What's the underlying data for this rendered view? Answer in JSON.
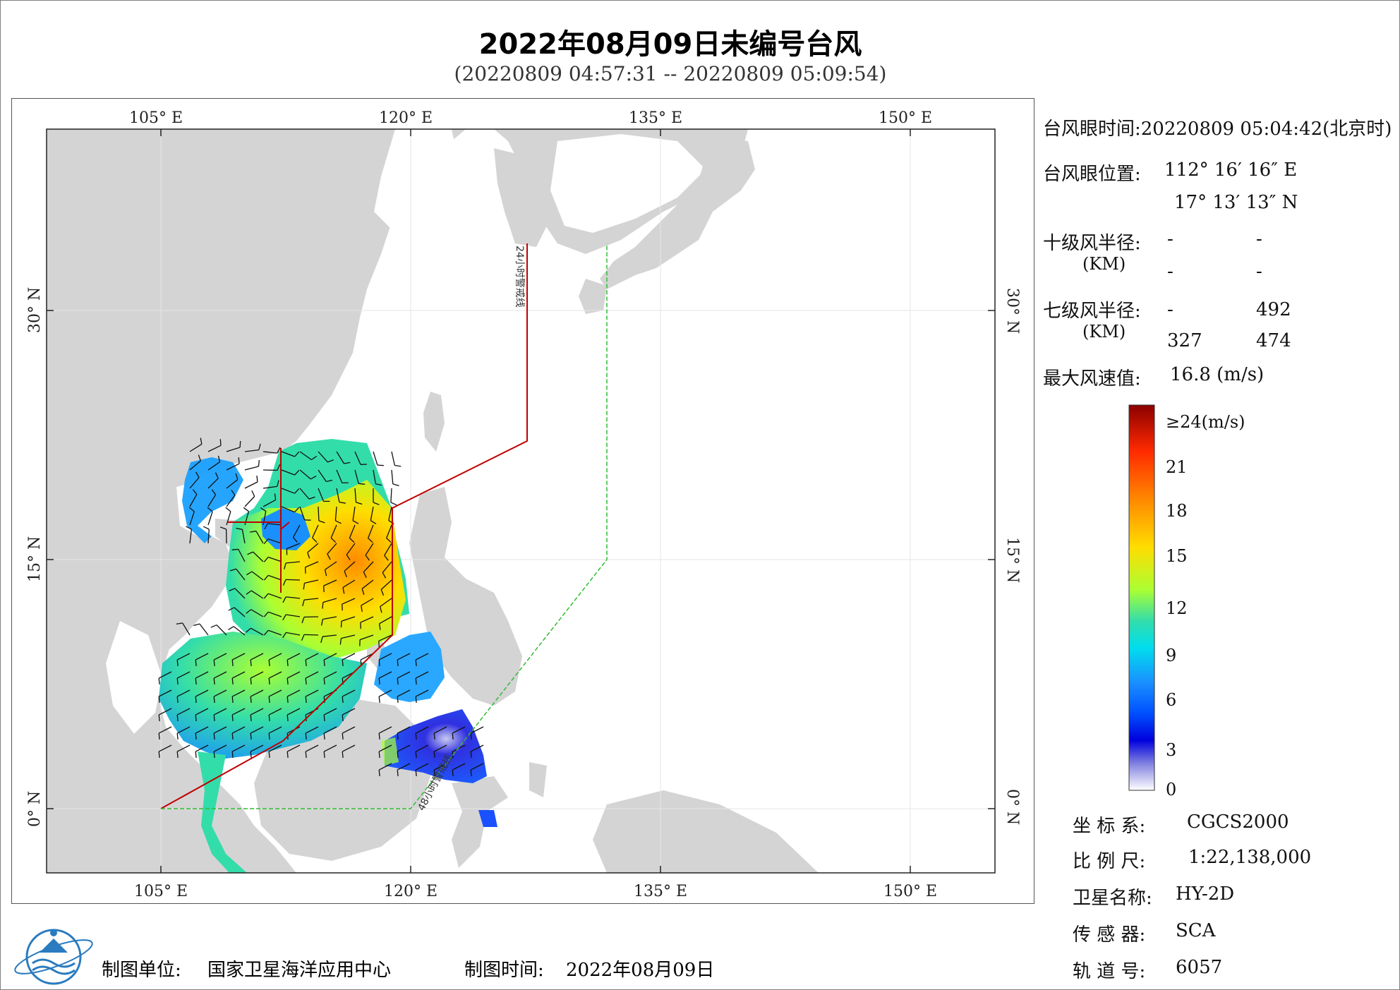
{
  "header": {
    "title": "2022年08月09日未编号台风",
    "time_range": "(20220809 04:57:31 -- 20220809 05:09:54)"
  },
  "map": {
    "top_lon_labels": [
      "105° E",
      "120° E",
      "135° E",
      "150° E"
    ],
    "bottom_lon_labels": [
      "105° E",
      "120° E",
      "135° E",
      "150° E"
    ],
    "left_lat_labels": [
      "30° N",
      "15° N",
      "0° N"
    ],
    "right_lat_labels": [
      "30° N",
      "15° N",
      "0° N"
    ],
    "line_24h_label": "24小时警戒线",
    "line_48h_label": "48小时警戒线",
    "colors": {
      "land": "#d4d4d4",
      "ocean": "#ffffff",
      "grid": "#e8e8e8",
      "warning_24h": "#c00000",
      "warning_48h": "#33bb33"
    }
  },
  "info_panel": {
    "eye_time_label": "台风眼时间:",
    "eye_time_value": "20220809 05:04:42(北京时)",
    "eye_pos_label": "台风眼位置:",
    "eye_lon": "112° 16′ 16″ E",
    "eye_lat": "17° 13′ 13″ N",
    "r10_label": "十级风半径:",
    "r10_unit": "(KM)",
    "r10_values": [
      "-",
      "-",
      "-",
      "-"
    ],
    "r7_label": "七级风半径:",
    "r7_unit": "(KM)",
    "r7_values": [
      "-",
      "492",
      "327",
      "474"
    ],
    "max_wind_label": "最大风速值:",
    "max_wind_value": "16.8  (m/s)"
  },
  "colorbar": {
    "top_label": "≥24(m/s)",
    "ticks": [
      "21",
      "18",
      "15",
      "12",
      "9",
      "6",
      "3",
      "0"
    ],
    "stops": [
      "#8b0000",
      "#ff2a00",
      "#ff8c00",
      "#ffdd00",
      "#aaff33",
      "#33ddaa",
      "#00ddee",
      "#1a90ff",
      "#0050ff",
      "#0000dd",
      "#8080e0",
      "#ffffff"
    ]
  },
  "metadata": {
    "crs_label": "坐 标 系:",
    "crs_value": "CGCS2000",
    "scale_label": "比 例 尺:",
    "scale_value": "1:22,138,000",
    "satellite_label": "卫星名称:",
    "satellite_value": "HY-2D",
    "sensor_label": "传 感 器:",
    "sensor_value": "SCA",
    "orbit_label": "轨 道 号:",
    "orbit_value": "6057"
  },
  "footer": {
    "producer_label": "制图单位:",
    "producer_value": "国家卫星海洋应用中心",
    "date_label": "制图时间:",
    "date_value": "2022年08月09日",
    "logo_icon": "satellite-ocean-center-logo"
  }
}
